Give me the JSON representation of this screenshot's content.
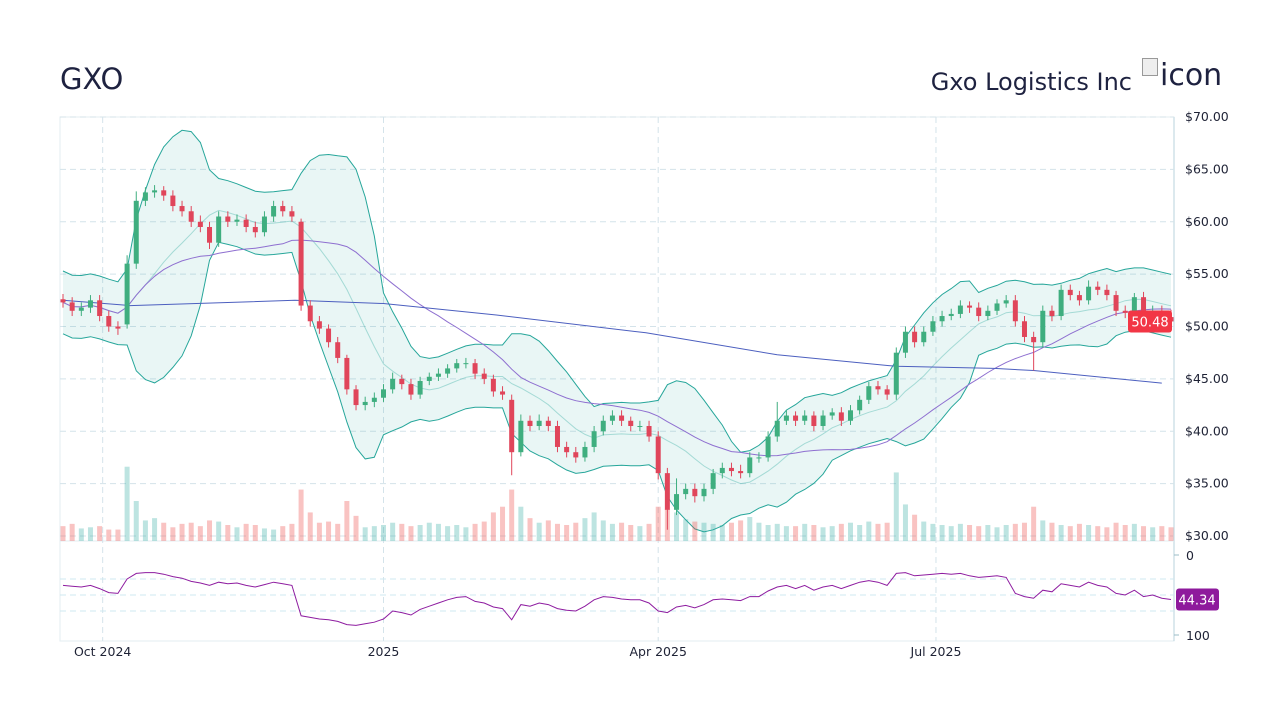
{
  "header": {
    "ticker": "GXO",
    "company": "Gxo Logistics Inc",
    "logo_alt": "icon"
  },
  "colors": {
    "up": "#26a69a",
    "down": "#ef5350",
    "bollinger": "#26a69a",
    "sma_short": "#8e6fd0",
    "sma_long": "#4c5fbf",
    "rsi": "#8e1ca0",
    "last_price_bg": "#f23645",
    "rsi_label_bg": "#8e1a9c",
    "grid": "#d4e3ea"
  },
  "chart_data": [
    {
      "type": "candlestick",
      "ylim": [
        30,
        70
      ],
      "yticks": [
        "$30.00",
        "$35.00",
        "$40.00",
        "$45.00",
        "$50.00",
        "$55.00",
        "$60.00",
        "$65.00",
        "$70.00"
      ],
      "ytick_values": [
        30,
        35,
        40,
        45,
        50,
        55,
        60,
        65,
        70
      ],
      "xlim": [
        "2024-09-18",
        "2025-09-16"
      ],
      "xticks": [
        {
          "label": "Oct 2024",
          "date": "2024-10-01"
        },
        {
          "label": "2025",
          "date": "2025-01-01"
        },
        {
          "label": "Apr 2025",
          "date": "2025-04-01"
        },
        {
          "label": "Jul 2025",
          "date": "2025-07-01"
        }
      ],
      "grid": true,
      "last_price": "50.48",
      "dates": [
        "2024-09-18",
        "2024-09-21",
        "2024-09-24",
        "2024-09-27",
        "2024-09-30",
        "2024-10-03",
        "2024-10-06",
        "2024-10-09",
        "2024-10-12",
        "2024-10-15",
        "2024-10-18",
        "2024-10-21",
        "2024-10-24",
        "2024-10-27",
        "2024-10-30",
        "2024-11-02",
        "2024-11-05",
        "2024-11-08",
        "2024-11-11",
        "2024-11-14",
        "2024-11-17",
        "2024-11-20",
        "2024-11-23",
        "2024-11-26",
        "2024-11-29",
        "2024-12-02",
        "2024-12-05",
        "2024-12-08",
        "2024-12-11",
        "2024-12-14",
        "2024-12-17",
        "2024-12-20",
        "2024-12-23",
        "2024-12-26",
        "2024-12-29",
        "2025-01-01",
        "2025-01-04",
        "2025-01-07",
        "2025-01-10",
        "2025-01-13",
        "2025-01-16",
        "2025-01-19",
        "2025-01-22",
        "2025-01-25",
        "2025-01-28",
        "2025-01-31",
        "2025-02-03",
        "2025-02-06",
        "2025-02-09",
        "2025-02-12",
        "2025-02-15",
        "2025-02-18",
        "2025-02-21",
        "2025-02-24",
        "2025-02-27",
        "2025-03-02",
        "2025-03-05",
        "2025-03-08",
        "2025-03-11",
        "2025-03-14",
        "2025-03-17",
        "2025-03-20",
        "2025-03-23",
        "2025-03-26",
        "2025-03-29",
        "2025-04-01",
        "2025-04-04",
        "2025-04-07",
        "2025-04-10",
        "2025-04-13",
        "2025-04-16",
        "2025-04-19",
        "2025-04-22",
        "2025-04-25",
        "2025-04-28",
        "2025-05-01",
        "2025-05-04",
        "2025-05-07",
        "2025-05-10",
        "2025-05-13",
        "2025-05-16",
        "2025-05-19",
        "2025-05-22",
        "2025-05-25",
        "2025-05-28",
        "2025-05-31",
        "2025-06-03",
        "2025-06-06",
        "2025-06-09",
        "2025-06-12",
        "2025-06-15",
        "2025-06-18",
        "2025-06-21",
        "2025-06-24",
        "2025-06-27",
        "2025-06-30",
        "2025-07-03",
        "2025-07-06",
        "2025-07-09",
        "2025-07-12",
        "2025-07-15",
        "2025-07-18",
        "2025-07-21",
        "2025-07-24",
        "2025-07-27",
        "2025-07-30",
        "2025-08-02",
        "2025-08-05",
        "2025-08-08",
        "2025-08-11",
        "2025-08-14",
        "2025-08-17",
        "2025-08-20",
        "2025-08-23",
        "2025-08-26",
        "2025-08-29",
        "2025-09-01",
        "2025-09-04",
        "2025-09-07",
        "2025-09-10",
        "2025-09-13",
        "2025-09-16"
      ],
      "open": [
        52.6,
        52.3,
        51.5,
        51.8,
        52.5,
        51,
        50,
        50.2,
        56,
        62,
        62.8,
        63,
        62.5,
        61.5,
        61,
        60,
        59.5,
        58,
        60.5,
        60,
        60.2,
        59.5,
        59,
        60.5,
        61.5,
        61,
        60,
        52,
        50.5,
        49.8,
        48.5,
        47,
        44,
        42.5,
        42.8,
        43.2,
        44,
        45,
        44.5,
        43.5,
        44.8,
        45.2,
        45.5,
        46,
        46.5,
        46.5,
        45.5,
        45,
        43.8,
        43,
        38,
        41,
        40.5,
        41,
        40.5,
        38.5,
        38,
        37.5,
        38.5,
        40,
        41,
        41.5,
        41,
        40.5,
        40.5,
        39.5,
        36,
        32.5,
        34,
        34.5,
        33.8,
        34.5,
        36,
        36.5,
        36.2,
        36,
        37.5,
        37.5,
        39.5,
        41,
        41.5,
        41,
        41.5,
        40.5,
        41.5,
        41.8,
        41,
        42,
        43,
        44.3,
        44,
        43.5,
        47.5,
        49.5,
        48.5,
        49.5,
        50.5,
        51,
        51.2,
        52,
        51.8,
        51,
        51.5,
        52.2,
        52.5,
        50.5,
        49,
        48.5,
        51.5,
        51,
        53.5,
        53,
        52.5,
        53.8,
        53.5,
        53,
        51.5,
        51.3,
        52.8,
        51,
        51.5,
        50.9
      ],
      "high": [
        53.1,
        52.8,
        52.3,
        53,
        53,
        51.5,
        50.5,
        56.8,
        62.9,
        63.3,
        63.5,
        63.4,
        63,
        62,
        61.5,
        60.6,
        60,
        61,
        61,
        60.7,
        60.7,
        60,
        61,
        62,
        62,
        61.5,
        60.3,
        52.5,
        51,
        50.2,
        49,
        47.3,
        44.4,
        43.3,
        43.7,
        44.5,
        45.6,
        45.4,
        45,
        45.2,
        45.6,
        46,
        46.4,
        46.9,
        47,
        46.9,
        46,
        45.4,
        44.3,
        43.5,
        41.6,
        41.5,
        41.6,
        41.4,
        41,
        39,
        38.5,
        39,
        40.5,
        41.5,
        42,
        42,
        41.4,
        41,
        41,
        40,
        36.5,
        35.5,
        35,
        35,
        35,
        36.4,
        37,
        37,
        36.8,
        38,
        38,
        40,
        42.8,
        42,
        41.9,
        42,
        41.9,
        42,
        42.2,
        42.3,
        42.5,
        43.4,
        44.7,
        44.8,
        44.4,
        48,
        50,
        50,
        50,
        51,
        51.5,
        51.7,
        52.5,
        52.4,
        52.3,
        52,
        52.6,
        53,
        53,
        51,
        49.5,
        52,
        52,
        54,
        54,
        53.4,
        54.4,
        54.3,
        54,
        53.4,
        52,
        53.2,
        53.3,
        52,
        52,
        51.6
      ],
      "low": [
        51.8,
        51,
        51,
        51.3,
        50.5,
        49.5,
        49.2,
        49.8,
        55.5,
        61.5,
        62.3,
        62,
        61,
        60.5,
        59.5,
        59,
        57.4,
        57.6,
        59.5,
        59.6,
        59,
        58.5,
        58.6,
        60,
        60.5,
        60,
        51.5,
        50,
        49.3,
        48,
        46.5,
        43.5,
        42,
        42,
        42.3,
        42.8,
        43.6,
        44,
        43,
        43.1,
        44.4,
        44.8,
        45.1,
        45.6,
        46,
        45,
        44.5,
        43.3,
        43,
        35.8,
        37.6,
        40,
        40.1,
        40,
        38,
        37.5,
        37,
        37.1,
        38,
        39.6,
        40.6,
        40.5,
        40,
        40,
        39,
        35.4,
        30.6,
        32,
        33.5,
        33.2,
        33.3,
        34,
        35.5,
        35.7,
        35.5,
        35.6,
        37,
        37.1,
        39,
        40.6,
        40.5,
        40.6,
        40,
        40.1,
        41.1,
        40.5,
        40.6,
        41.6,
        42.6,
        43.5,
        43,
        43,
        47,
        48,
        48.1,
        49.1,
        50,
        50.6,
        50.8,
        51.3,
        50.5,
        50.6,
        51.1,
        51.8,
        50,
        48.5,
        45.8,
        48,
        50.5,
        50.6,
        52.5,
        52,
        52.1,
        53,
        52.5,
        51,
        50.8,
        50.9,
        50.5,
        50.6,
        50.4,
        49.9
      ],
      "close": [
        52.3,
        51.5,
        51.8,
        52.5,
        51,
        50,
        49.8,
        56,
        62,
        62.8,
        63,
        62.5,
        61.5,
        61,
        60,
        59.5,
        58,
        60.5,
        60,
        60.2,
        59.5,
        59,
        60.5,
        61.5,
        61,
        60.5,
        52,
        50.5,
        49.8,
        48.5,
        47,
        44,
        42.5,
        42.8,
        43.2,
        44,
        45,
        44.5,
        43.5,
        44.8,
        45.2,
        45.5,
        46,
        46.5,
        46.5,
        45.5,
        45,
        43.8,
        43.5,
        38,
        41,
        40.5,
        41,
        40.5,
        38.5,
        38,
        37.5,
        38.5,
        40,
        41,
        41.5,
        41,
        40.5,
        40.5,
        39.5,
        36,
        32.5,
        34,
        34.5,
        33.8,
        34.5,
        36,
        36.5,
        36.2,
        36,
        37.5,
        37.5,
        39.5,
        41,
        41.5,
        41,
        41.5,
        40.5,
        41.5,
        41.8,
        41,
        42,
        43,
        44.3,
        44,
        43.5,
        47.5,
        49.5,
        48.5,
        49.5,
        50.5,
        51,
        51.2,
        52,
        51.8,
        51,
        51.5,
        52.2,
        52.5,
        50.5,
        49,
        48.5,
        51.5,
        51,
        53.5,
        53,
        52.5,
        53.8,
        53.5,
        53,
        51.5,
        51.3,
        52.8,
        51,
        51.5,
        50.9,
        50.48
      ],
      "volume_millions": [
        1.3,
        1.5,
        1.1,
        1.2,
        1.3,
        1.0,
        1.0,
        6.5,
        3.5,
        1.8,
        2.0,
        1.6,
        1.2,
        1.5,
        1.6,
        1.3,
        1.8,
        1.7,
        1.4,
        1.2,
        1.5,
        1.4,
        1.1,
        1.0,
        1.3,
        1.5,
        4.5,
        2.5,
        1.6,
        1.7,
        1.5,
        3.5,
        2.2,
        1.2,
        1.3,
        1.4,
        1.6,
        1.5,
        1.3,
        1.4,
        1.6,
        1.5,
        1.3,
        1.4,
        1.2,
        1.5,
        1.7,
        2.5,
        3.0,
        4.5,
        3.0,
        2.0,
        1.6,
        1.8,
        1.5,
        1.4,
        1.6,
        2.0,
        2.5,
        1.8,
        1.5,
        1.6,
        1.4,
        1.3,
        1.5,
        3.0,
        2.8,
        2.5,
        1.9,
        1.7,
        1.6,
        1.5,
        1.4,
        1.6,
        1.8,
        2.1,
        1.6,
        1.4,
        1.5,
        1.3,
        1.3,
        1.5,
        1.4,
        1.2,
        1.3,
        1.5,
        1.6,
        1.4,
        1.7,
        1.5,
        1.6,
        6.0,
        3.2,
        2.3,
        1.7,
        1.5,
        1.4,
        1.3,
        1.5,
        1.4,
        1.3,
        1.4,
        1.2,
        1.4,
        1.5,
        1.6,
        3.0,
        1.8,
        1.6,
        1.4,
        1.3,
        1.5,
        1.4,
        1.3,
        1.2,
        1.6,
        1.4,
        1.5,
        1.3,
        1.2,
        1.3,
        1.2
      ],
      "sma_long": [
        [
          "2024-09-18",
          52.5
        ],
        [
          "2024-10-10",
          52
        ],
        [
          "2024-12-03",
          52.5
        ],
        [
          "2025-01-01",
          52.2
        ],
        [
          "2025-02-07",
          51.1
        ],
        [
          "2025-03-28",
          49.4
        ],
        [
          "2025-05-10",
          47.3
        ],
        [
          "2025-06-18",
          46.2
        ],
        [
          "2025-07-20",
          46
        ],
        [
          "2025-08-02",
          45.8
        ],
        [
          "2025-09-13",
          44.6
        ]
      ]
    },
    {
      "type": "line",
      "name": "RSI",
      "ylim": [
        0,
        100
      ],
      "yticks": [
        "0",
        "100"
      ],
      "guides": [
        30,
        50,
        70
      ],
      "last_value": "44.34",
      "values": [
        62,
        61,
        60,
        62,
        58,
        53,
        52,
        70,
        77,
        78,
        78,
        76,
        73,
        71,
        67,
        65,
        62,
        66,
        64,
        65,
        62,
        60,
        63,
        66,
        64,
        62,
        24,
        22,
        20,
        19,
        17,
        13,
        12,
        14,
        16,
        20,
        30,
        28,
        25,
        32,
        36,
        40,
        44,
        47,
        48,
        42,
        40,
        35,
        33,
        19,
        38,
        36,
        40,
        38,
        33,
        31,
        30,
        36,
        44,
        48,
        47,
        45,
        44,
        44,
        40,
        30,
        28,
        35,
        37,
        34,
        38,
        44,
        45,
        44,
        43,
        48,
        48,
        55,
        60,
        62,
        58,
        62,
        56,
        60,
        62,
        58,
        62,
        66,
        68,
        66,
        62,
        77,
        78,
        74,
        75,
        76,
        77,
        76,
        77,
        74,
        72,
        73,
        74,
        72,
        52,
        48,
        46,
        56,
        54,
        64,
        62,
        60,
        66,
        62,
        60,
        52,
        50,
        56,
        48,
        50,
        46,
        44.34
      ]
    }
  ]
}
